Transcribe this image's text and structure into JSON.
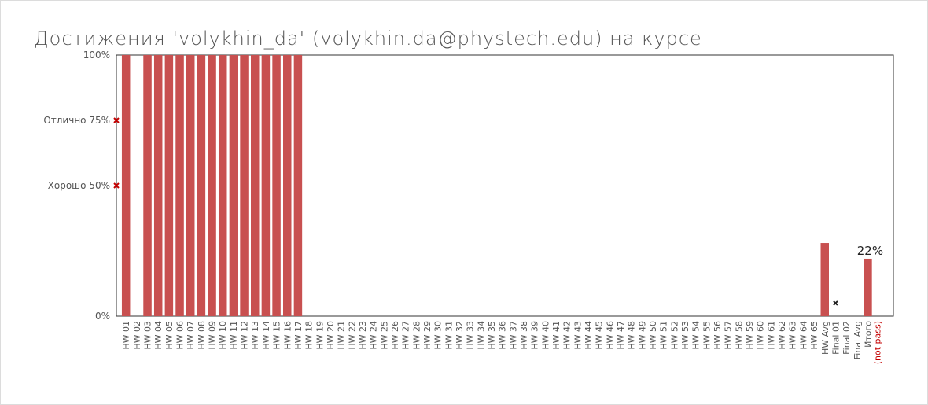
{
  "page": {
    "title": "Достижения 'volykhin_da' (volykhin.da@phystech.edu) на курсе"
  },
  "chart_data": {
    "type": "bar",
    "ylim": [
      0,
      100
    ],
    "y_ticks": [
      {
        "value": 100,
        "label": "100%"
      },
      {
        "value": 0,
        "label": "0%"
      }
    ],
    "thresholds": [
      {
        "value": 75,
        "label": "Отлично 75%",
        "marker_color": "#c40000"
      },
      {
        "value": 50,
        "label": "Хорошо 50%",
        "marker_color": "#c40000"
      }
    ],
    "categories": [
      "HW 01",
      "HW 02",
      "HW 03",
      "HW 04",
      "HW 05",
      "HW 06",
      "HW 07",
      "HW 08",
      "HW 09",
      "HW 10",
      "HW 11",
      "HW 12",
      "HW 13",
      "HW 14",
      "HW 15",
      "HW 16",
      "HW 17",
      "HW 18",
      "HW 19",
      "HW 20",
      "HW 21",
      "HW 22",
      "HW 23",
      "HW 24",
      "HW 25",
      "HW 26",
      "HW 27",
      "HW 28",
      "HW 29",
      "HW 30",
      "HW 31",
      "HW 32",
      "HW 33",
      "HW 34",
      "HW 35",
      "HW 36",
      "HW 37",
      "HW 38",
      "HW 39",
      "HW 40",
      "HW 41",
      "HW 42",
      "HW 43",
      "HW 44",
      "HW 45",
      "HW 46",
      "HW 47",
      "HW 48",
      "HW 49",
      "HW 50",
      "HW 51",
      "HW 52",
      "HW 53",
      "HW 54",
      "HW 55",
      "HW 56",
      "HW 57",
      "HW 58",
      "HW 59",
      "HW 60",
      "HW 61",
      "HW 62",
      "HW 63",
      "HW 64",
      "HW 65",
      "HW Avg",
      "Final 01",
      "Final 02",
      "Final Avg",
      "Итого"
    ],
    "values": [
      100,
      0,
      100,
      100,
      100,
      100,
      100,
      100,
      100,
      100,
      100,
      100,
      100,
      100,
      100,
      100,
      100,
      0,
      0,
      0,
      0,
      0,
      0,
      0,
      0,
      0,
      0,
      0,
      0,
      0,
      0,
      0,
      0,
      0,
      0,
      0,
      0,
      0,
      0,
      0,
      0,
      0,
      0,
      0,
      0,
      0,
      0,
      0,
      0,
      0,
      0,
      0,
      0,
      0,
      0,
      0,
      0,
      0,
      0,
      0,
      0,
      0,
      0,
      0,
      0,
      28,
      0,
      0,
      0,
      22
    ],
    "markers": [
      {
        "category": "Final 01",
        "value": 5,
        "color": "#222222"
      }
    ],
    "data_labels": [
      {
        "category": "Итого",
        "label": "22%"
      }
    ],
    "status_note": {
      "category": "Итого",
      "label": "(not pass)",
      "color": "#c40000"
    },
    "bar_color": "#c85050",
    "grid": false
  }
}
